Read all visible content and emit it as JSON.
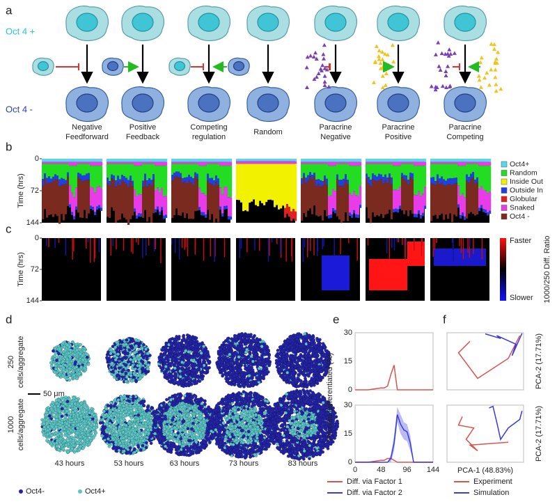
{
  "panel_labels": [
    "a",
    "b",
    "c",
    "d",
    "e",
    "f"
  ],
  "panel_a": {
    "top_label": "Oct 4 +",
    "bottom_label": "Oct 4 -",
    "models": [
      [
        "Negative",
        "Feedforward"
      ],
      [
        "Positive",
        "Feedback"
      ],
      [
        "Competing",
        "regulation"
      ],
      [
        "Random"
      ],
      [
        "Paracrine",
        "Negative"
      ],
      [
        "Paracrine",
        "Positive"
      ],
      [
        "Paracrine",
        "Competing"
      ]
    ]
  },
  "panel_b": {
    "ylabel": "Time (hrs)",
    "ylim": [
      0,
      144
    ],
    "yticks": [
      0,
      72,
      144
    ],
    "legend": [
      {
        "name": "Oct4+",
        "color": "#5ad6ea"
      },
      {
        "name": "Random",
        "color": "#22dd22"
      },
      {
        "name": "Inside Out",
        "color": "#f2f200"
      },
      {
        "name": "Outside In",
        "color": "#1f3fe0"
      },
      {
        "name": "Globular",
        "color": "#e02020"
      },
      {
        "name": "Snaked",
        "color": "#e83ce8"
      },
      {
        "name": "Oct4 -",
        "color": "#7a2a1e"
      }
    ]
  },
  "panel_c": {
    "ylabel": "Time (hrs)",
    "ylim": [
      0,
      144
    ],
    "yticks": [
      0,
      72,
      144
    ],
    "colorbar_top": "Faster",
    "colorbar_bottom": "Slower",
    "colorbar_label": "1000/250 Diff. Ratio"
  },
  "panel_d": {
    "rows": [
      [
        "250",
        "cells/aggregate"
      ],
      [
        "1000",
        "cells/aggregate"
      ]
    ],
    "scale_bar": "50 μm",
    "times": [
      "43 hours",
      "53 hours",
      "63 hours",
      "73 hours",
      "83 hours"
    ],
    "legend": [
      {
        "name": "Oct4-",
        "color": "#2424a8"
      },
      {
        "name": "Oct4+",
        "color": "#5cc6c6"
      }
    ]
  },
  "chart_data": [
    {
      "type": "line",
      "ylabel": "Percent Differentiated (%)",
      "xlim": [
        0,
        144
      ],
      "ylim": [
        0,
        30
      ],
      "yticks": [
        0,
        15,
        30
      ],
      "x": [
        0,
        12,
        24,
        36,
        48,
        54,
        60,
        66,
        72,
        78,
        84,
        90,
        96,
        102,
        108,
        120,
        132,
        144
      ],
      "series": [
        {
          "color": "#d9534f",
          "values": [
            0,
            0,
            0,
            0.5,
            1,
            1,
            2,
            8,
            13,
            0,
            0,
            0,
            0,
            0,
            0,
            0,
            0,
            0
          ]
        }
      ]
    },
    {
      "type": "line",
      "xlim": [
        0,
        144
      ],
      "ylim": [
        0,
        30
      ],
      "yticks": [
        0,
        15,
        30
      ],
      "xticks": [
        0,
        48,
        96,
        144
      ],
      "x": [
        0,
        12,
        24,
        36,
        48,
        54,
        60,
        66,
        72,
        78,
        84,
        90,
        96,
        102,
        108,
        120,
        132,
        144
      ],
      "series": [
        {
          "name": "Diff. via Factor 1",
          "color": "#d9534f",
          "values": [
            0,
            0,
            0,
            0.5,
            1,
            1,
            2,
            2,
            1,
            0,
            0,
            0,
            0,
            0,
            0,
            0,
            0,
            0
          ]
        },
        {
          "name": "Diff. via Factor 2",
          "color": "#3a3ae0",
          "values": [
            0,
            0,
            0,
            0,
            0,
            0,
            0,
            2,
            10,
            25,
            20,
            17,
            16,
            10,
            0,
            0,
            0,
            0
          ],
          "lower": [
            0,
            0,
            0,
            0,
            0,
            0,
            0,
            0,
            6,
            21,
            15,
            12,
            11,
            6,
            0,
            0,
            0,
            0
          ],
          "upper": [
            0,
            0,
            0,
            0,
            0,
            0,
            0,
            4,
            14,
            29,
            25,
            21,
            20,
            14,
            0,
            0,
            0,
            0
          ]
        }
      ]
    },
    {
      "type": "path",
      "ylabel": "PCA-2 (17.71%)",
      "xlim": [
        0,
        10
      ],
      "ylim": [
        0,
        10
      ],
      "series": [
        {
          "color": "#d9534f",
          "x": [
            3,
            1.5,
            4,
            8,
            9.5
          ],
          "y": [
            8.5,
            6.5,
            2,
            5.5,
            9.5
          ]
        },
        {
          "color": "#3a3ae0",
          "x": [
            5,
            7,
            6.5,
            9,
            8.5,
            9.8
          ],
          "y": [
            9.8,
            9,
            9.5,
            8,
            6,
            9.9
          ]
        }
      ]
    },
    {
      "type": "path",
      "xlabel": "PCA-1 (48.83%)",
      "ylabel": "PCA-2 (17.71%)",
      "xlim": [
        0,
        10
      ],
      "ylim": [
        0,
        10
      ],
      "series": [
        {
          "name": "Experiment",
          "color": "#d9534f",
          "x": [
            2,
            1.5,
            3.5,
            2.5,
            4,
            3,
            8
          ],
          "y": [
            8,
            6.5,
            6,
            4,
            2,
            3,
            3.5
          ]
        },
        {
          "name": "Simulation",
          "color": "#3a3ae0",
          "x": [
            5.5,
            6,
            6.5,
            7,
            8,
            9.5,
            9.8
          ],
          "y": [
            9.5,
            9.8,
            7,
            4,
            6,
            7.5,
            9
          ]
        }
      ]
    }
  ]
}
